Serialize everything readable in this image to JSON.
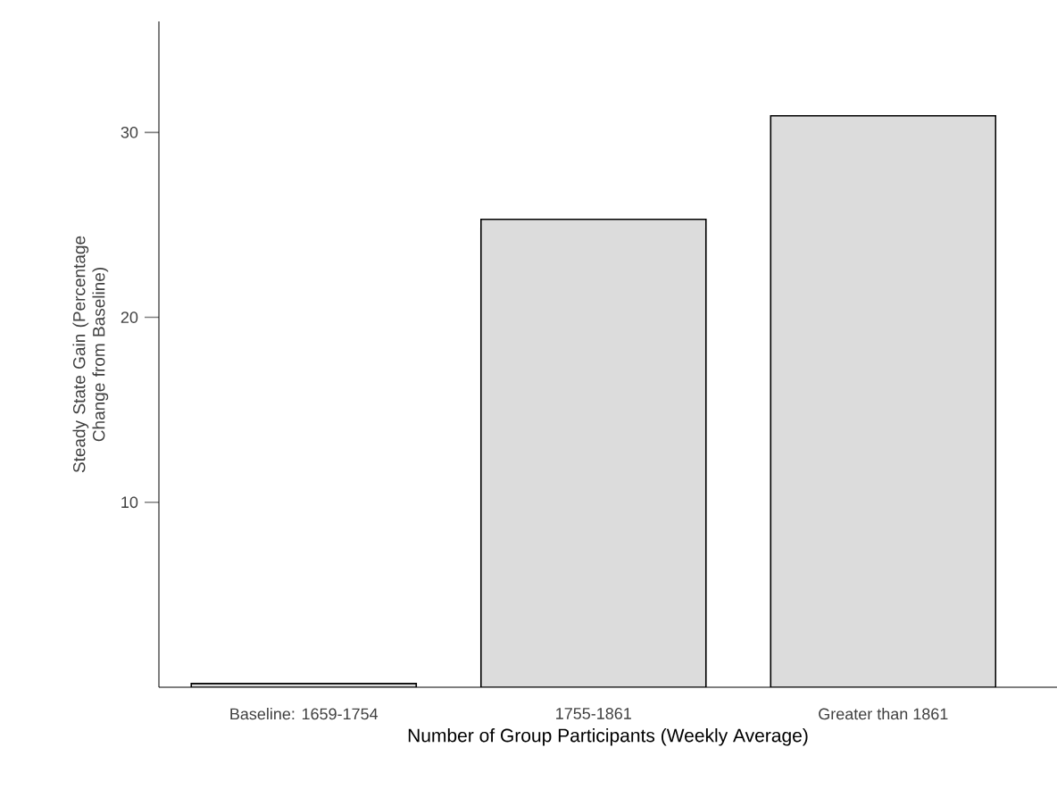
{
  "chart_data": {
    "type": "bar",
    "xlabel": "Number of Group Participants (Weekly Average)",
    "ylabel": "Steady State Gain (Percentage Change from Baseline)",
    "categories": [
      "Baseline: 1659-1754",
      "1755-1861",
      "Greater than 1861"
    ],
    "values": [
      0.2,
      25.3,
      30.9
    ],
    "color": "#dcdcdc",
    "ylim": [
      0,
      36
    ],
    "yticks": [
      10,
      20,
      30
    ]
  }
}
